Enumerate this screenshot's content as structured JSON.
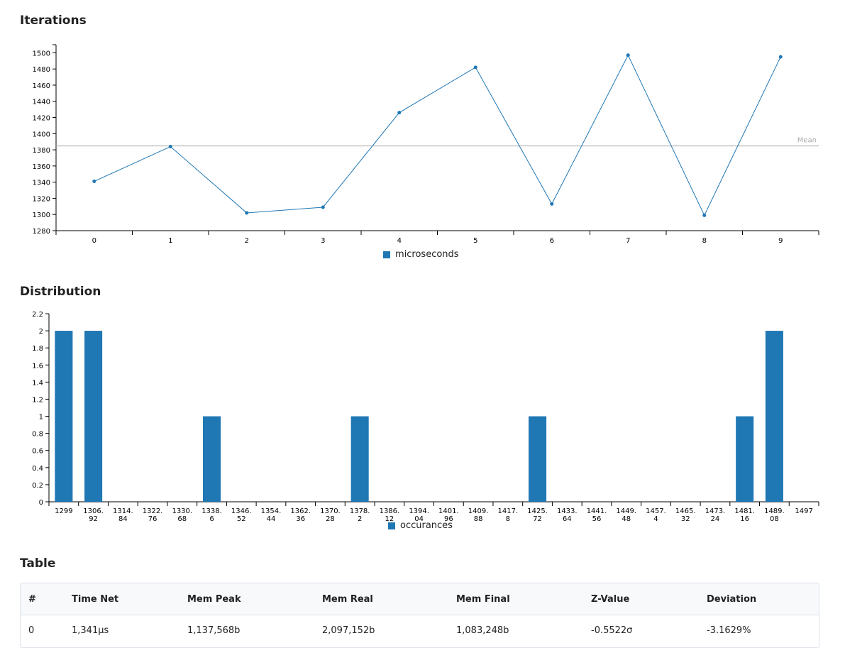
{
  "sections": {
    "iterations_title": "Iterations",
    "distribution_title": "Distribution",
    "table_title": "Table"
  },
  "colors": {
    "series": "#1f77b4",
    "mean_line": "#aaaaaa",
    "axis": "#000000"
  },
  "chart_data": [
    {
      "type": "line",
      "title": "Iterations",
      "xlabel": "",
      "ylabel": "",
      "x": [
        0,
        1,
        2,
        3,
        4,
        5,
        6,
        7,
        8,
        9
      ],
      "ylim": [
        1280,
        1510
      ],
      "yticks": [
        1280,
        1300,
        1320,
        1340,
        1360,
        1380,
        1400,
        1420,
        1440,
        1460,
        1480,
        1500
      ],
      "series": [
        {
          "name": "microseconds",
          "values": [
            1341,
            1384,
            1302,
            1309,
            1426,
            1482,
            1313,
            1497,
            1299,
            1495
          ]
        }
      ],
      "mean": {
        "label": "Mean",
        "value": 1384.8
      },
      "legend": "bottom-center",
      "grid": false
    },
    {
      "type": "bar",
      "title": "Distribution",
      "xlabel": "",
      "ylabel": "",
      "categories": [
        "1299",
        "1306.92",
        "1314.84",
        "1322.76",
        "1330.68",
        "1338.6",
        "1346.52",
        "1354.44",
        "1362.36",
        "1370.28",
        "1378.2",
        "1386.12",
        "1394.04",
        "1401.96",
        "1409.88",
        "1417.8",
        "1425.72",
        "1433.64",
        "1441.56",
        "1449.48",
        "1457.4",
        "1465.32",
        "1473.24",
        "1481.16",
        "1489.08",
        "1497"
      ],
      "category_label_lines": [
        [
          "1299"
        ],
        [
          "1306.",
          "92"
        ],
        [
          "1314.",
          "84"
        ],
        [
          "1322.",
          "76"
        ],
        [
          "1330.",
          "68"
        ],
        [
          "1338.",
          "6"
        ],
        [
          "1346.",
          "52"
        ],
        [
          "1354.",
          "44"
        ],
        [
          "1362.",
          "36"
        ],
        [
          "1370.",
          "28"
        ],
        [
          "1378.",
          "2"
        ],
        [
          "1386.",
          "12"
        ],
        [
          "1394.",
          "04"
        ],
        [
          "1401.",
          "96"
        ],
        [
          "1409.",
          "88"
        ],
        [
          "1417.",
          "8"
        ],
        [
          "1425.",
          "72"
        ],
        [
          "1433.",
          "64"
        ],
        [
          "1441.",
          "56"
        ],
        [
          "1449.",
          "48"
        ],
        [
          "1457.",
          "4"
        ],
        [
          "1465.",
          "32"
        ],
        [
          "1473.",
          "24"
        ],
        [
          "1481.",
          "16"
        ],
        [
          "1489.",
          "08"
        ],
        [
          "1497"
        ]
      ],
      "ylim": [
        0,
        2.2
      ],
      "yticks": [
        0,
        0.2,
        0.4,
        0.6,
        0.8,
        1,
        1.2,
        1.4,
        1.6,
        1.8,
        2,
        2.2
      ],
      "series": [
        {
          "name": "occurances",
          "values": [
            2,
            2,
            0,
            0,
            0,
            1,
            0,
            0,
            0,
            0,
            1,
            0,
            0,
            0,
            0,
            0,
            1,
            0,
            0,
            0,
            0,
            0,
            0,
            1,
            2,
            0
          ]
        }
      ],
      "legend": "bottom-center",
      "grid": false
    },
    {
      "type": "table",
      "title": "Table",
      "columns": [
        "#",
        "Time Net",
        "Mem Peak",
        "Mem Real",
        "Mem Final",
        "Z-Value",
        "Deviation"
      ],
      "rows": [
        [
          "0",
          "1,341μs",
          "1,137,568b",
          "2,097,152b",
          "1,083,248b",
          "-0.5522σ",
          "-3.1629%"
        ]
      ]
    }
  ]
}
